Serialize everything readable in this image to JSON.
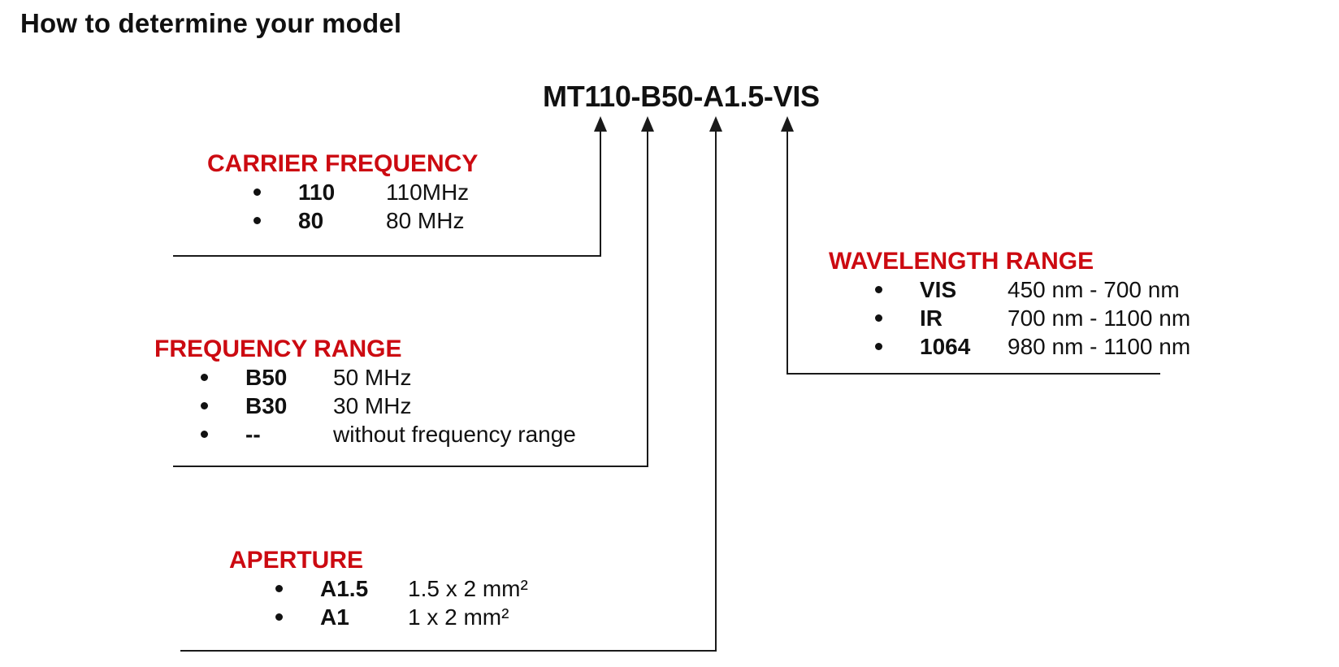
{
  "page": {
    "title": "How to determine your model",
    "model_number": "MT110-B50-A1.5-VIS"
  },
  "colors": {
    "accent_red": "#cc0a11",
    "text_black": "#111111",
    "line_black": "#1a1a1a"
  },
  "sections": [
    {
      "id": "carrier-frequency",
      "title": "CARRIER FREQUENCY",
      "items": [
        {
          "code": "110",
          "description": "110MHz"
        },
        {
          "code": "80",
          "description": "80 MHz"
        }
      ]
    },
    {
      "id": "frequency-range",
      "title": "FREQUENCY RANGE",
      "items": [
        {
          "code": "B50",
          "description": "50 MHz"
        },
        {
          "code": "B30",
          "description": "30 MHz"
        },
        {
          "code": "--",
          "description": "without frequency range"
        }
      ]
    },
    {
      "id": "aperture",
      "title": "APERTURE",
      "items": [
        {
          "code": "A1.5",
          "description": "1.5 x 2 mm²"
        },
        {
          "code": "A1",
          "description": "1 x 2 mm²"
        }
      ]
    },
    {
      "id": "wavelength-range",
      "title": "WAVELENGTH RANGE",
      "items": [
        {
          "code": "VIS",
          "description": "450 nm - 700 nm"
        },
        {
          "code": "IR",
          "description": "700 nm - 1100 nm"
        },
        {
          "code": "1064",
          "description": "980 nm - 1100 nm"
        }
      ]
    }
  ]
}
